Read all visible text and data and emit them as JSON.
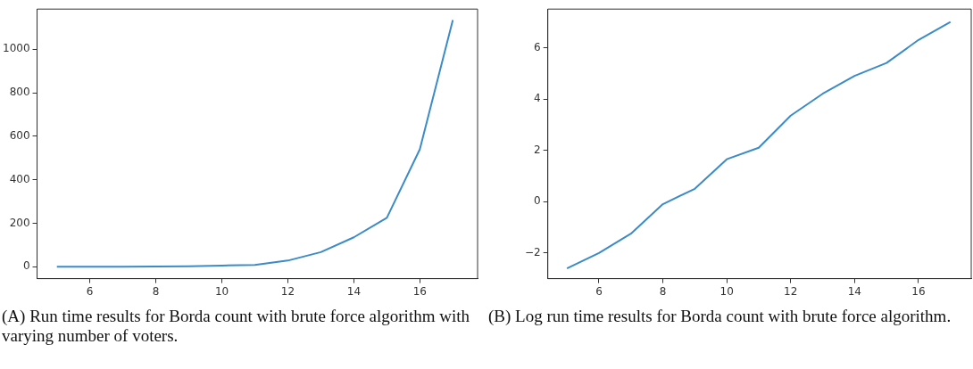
{
  "chart_data": [
    {
      "type": "line",
      "x": [
        5,
        6,
        7,
        8,
        9,
        10,
        11,
        12,
        13,
        14,
        15,
        16,
        17
      ],
      "series": [
        {
          "color": "#3b8bc8",
          "values": [
            0,
            0,
            0,
            1,
            2,
            5,
            8,
            28,
            67,
            135,
            225,
            540,
            1135
          ]
        }
      ],
      "xlim": [
        4.4,
        17.75
      ],
      "xticks": [
        6,
        8,
        10,
        12,
        14,
        16
      ],
      "ylim": [
        -55,
        1185
      ],
      "yticks": [
        0,
        200,
        400,
        600,
        800,
        1000
      ],
      "grid": false,
      "legend": false,
      "marker": "none",
      "line_style": "solid",
      "annotations": [
        "(A) Run time results for Borda count with brute force algorithm with varying number of voters."
      ]
    },
    {
      "type": "line",
      "x": [
        5,
        6,
        7,
        8,
        9,
        10,
        11,
        12,
        13,
        14,
        15,
        16,
        17
      ],
      "series": [
        {
          "color": "#3b8bc8",
          "values": [
            -2.6,
            -2.0,
            -1.25,
            -0.1,
            0.5,
            1.65,
            2.1,
            3.35,
            4.2,
            4.9,
            5.4,
            6.3,
            7.0
          ]
        }
      ],
      "xlim": [
        4.4,
        17.65
      ],
      "xticks": [
        6,
        8,
        10,
        12,
        14,
        16
      ],
      "ylim": [
        -3.0,
        7.5
      ],
      "yticks": [
        -2,
        0,
        2,
        4,
        6
      ],
      "grid": false,
      "legend": false,
      "marker": "none",
      "line_style": "solid",
      "annotations": [
        "(B) Log run time results for Borda count with brute force algorithm."
      ]
    }
  ]
}
